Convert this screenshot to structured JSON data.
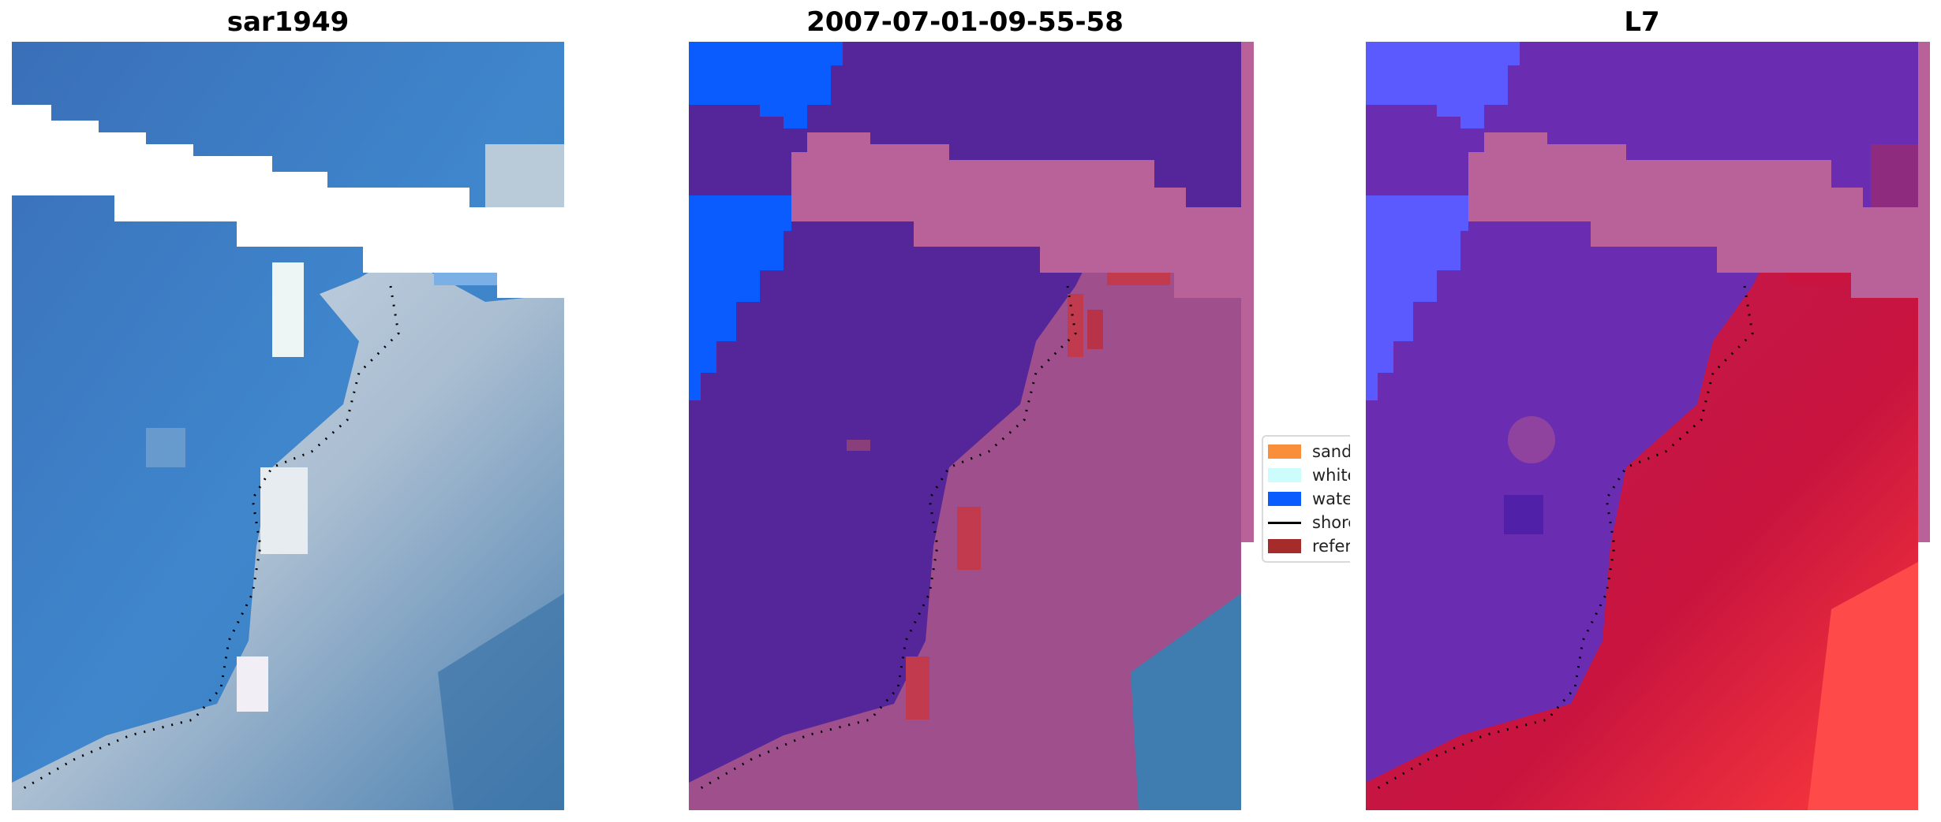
{
  "panels": [
    {
      "title": "sar1949"
    },
    {
      "title": "2007-07-01-09-55-58"
    },
    {
      "title": "L7"
    }
  ],
  "legend": {
    "items": [
      {
        "label": "sand",
        "color": "#f98e3b",
        "kind": "patch"
      },
      {
        "label": "whitewater",
        "color": "#ccfcfc",
        "kind": "patch"
      },
      {
        "label": "water",
        "color": "#0a5cff",
        "kind": "patch"
      },
      {
        "label": "shoreline",
        "color": "#000000",
        "kind": "line"
      },
      {
        "label": "reference",
        "color": "#a62b2b",
        "kind": "patch"
      }
    ]
  },
  "colors": {
    "sea_rgb": "#3f82c8",
    "foam_rgb": "#c9d6df",
    "water_class": "#0a5cff",
    "ocean_purple": "#55259a",
    "land_pink": "#a0508c",
    "cloud_pink": "#b8609a",
    "land_red": "#c41540",
    "ocean_violet": "#6a2cb0"
  }
}
